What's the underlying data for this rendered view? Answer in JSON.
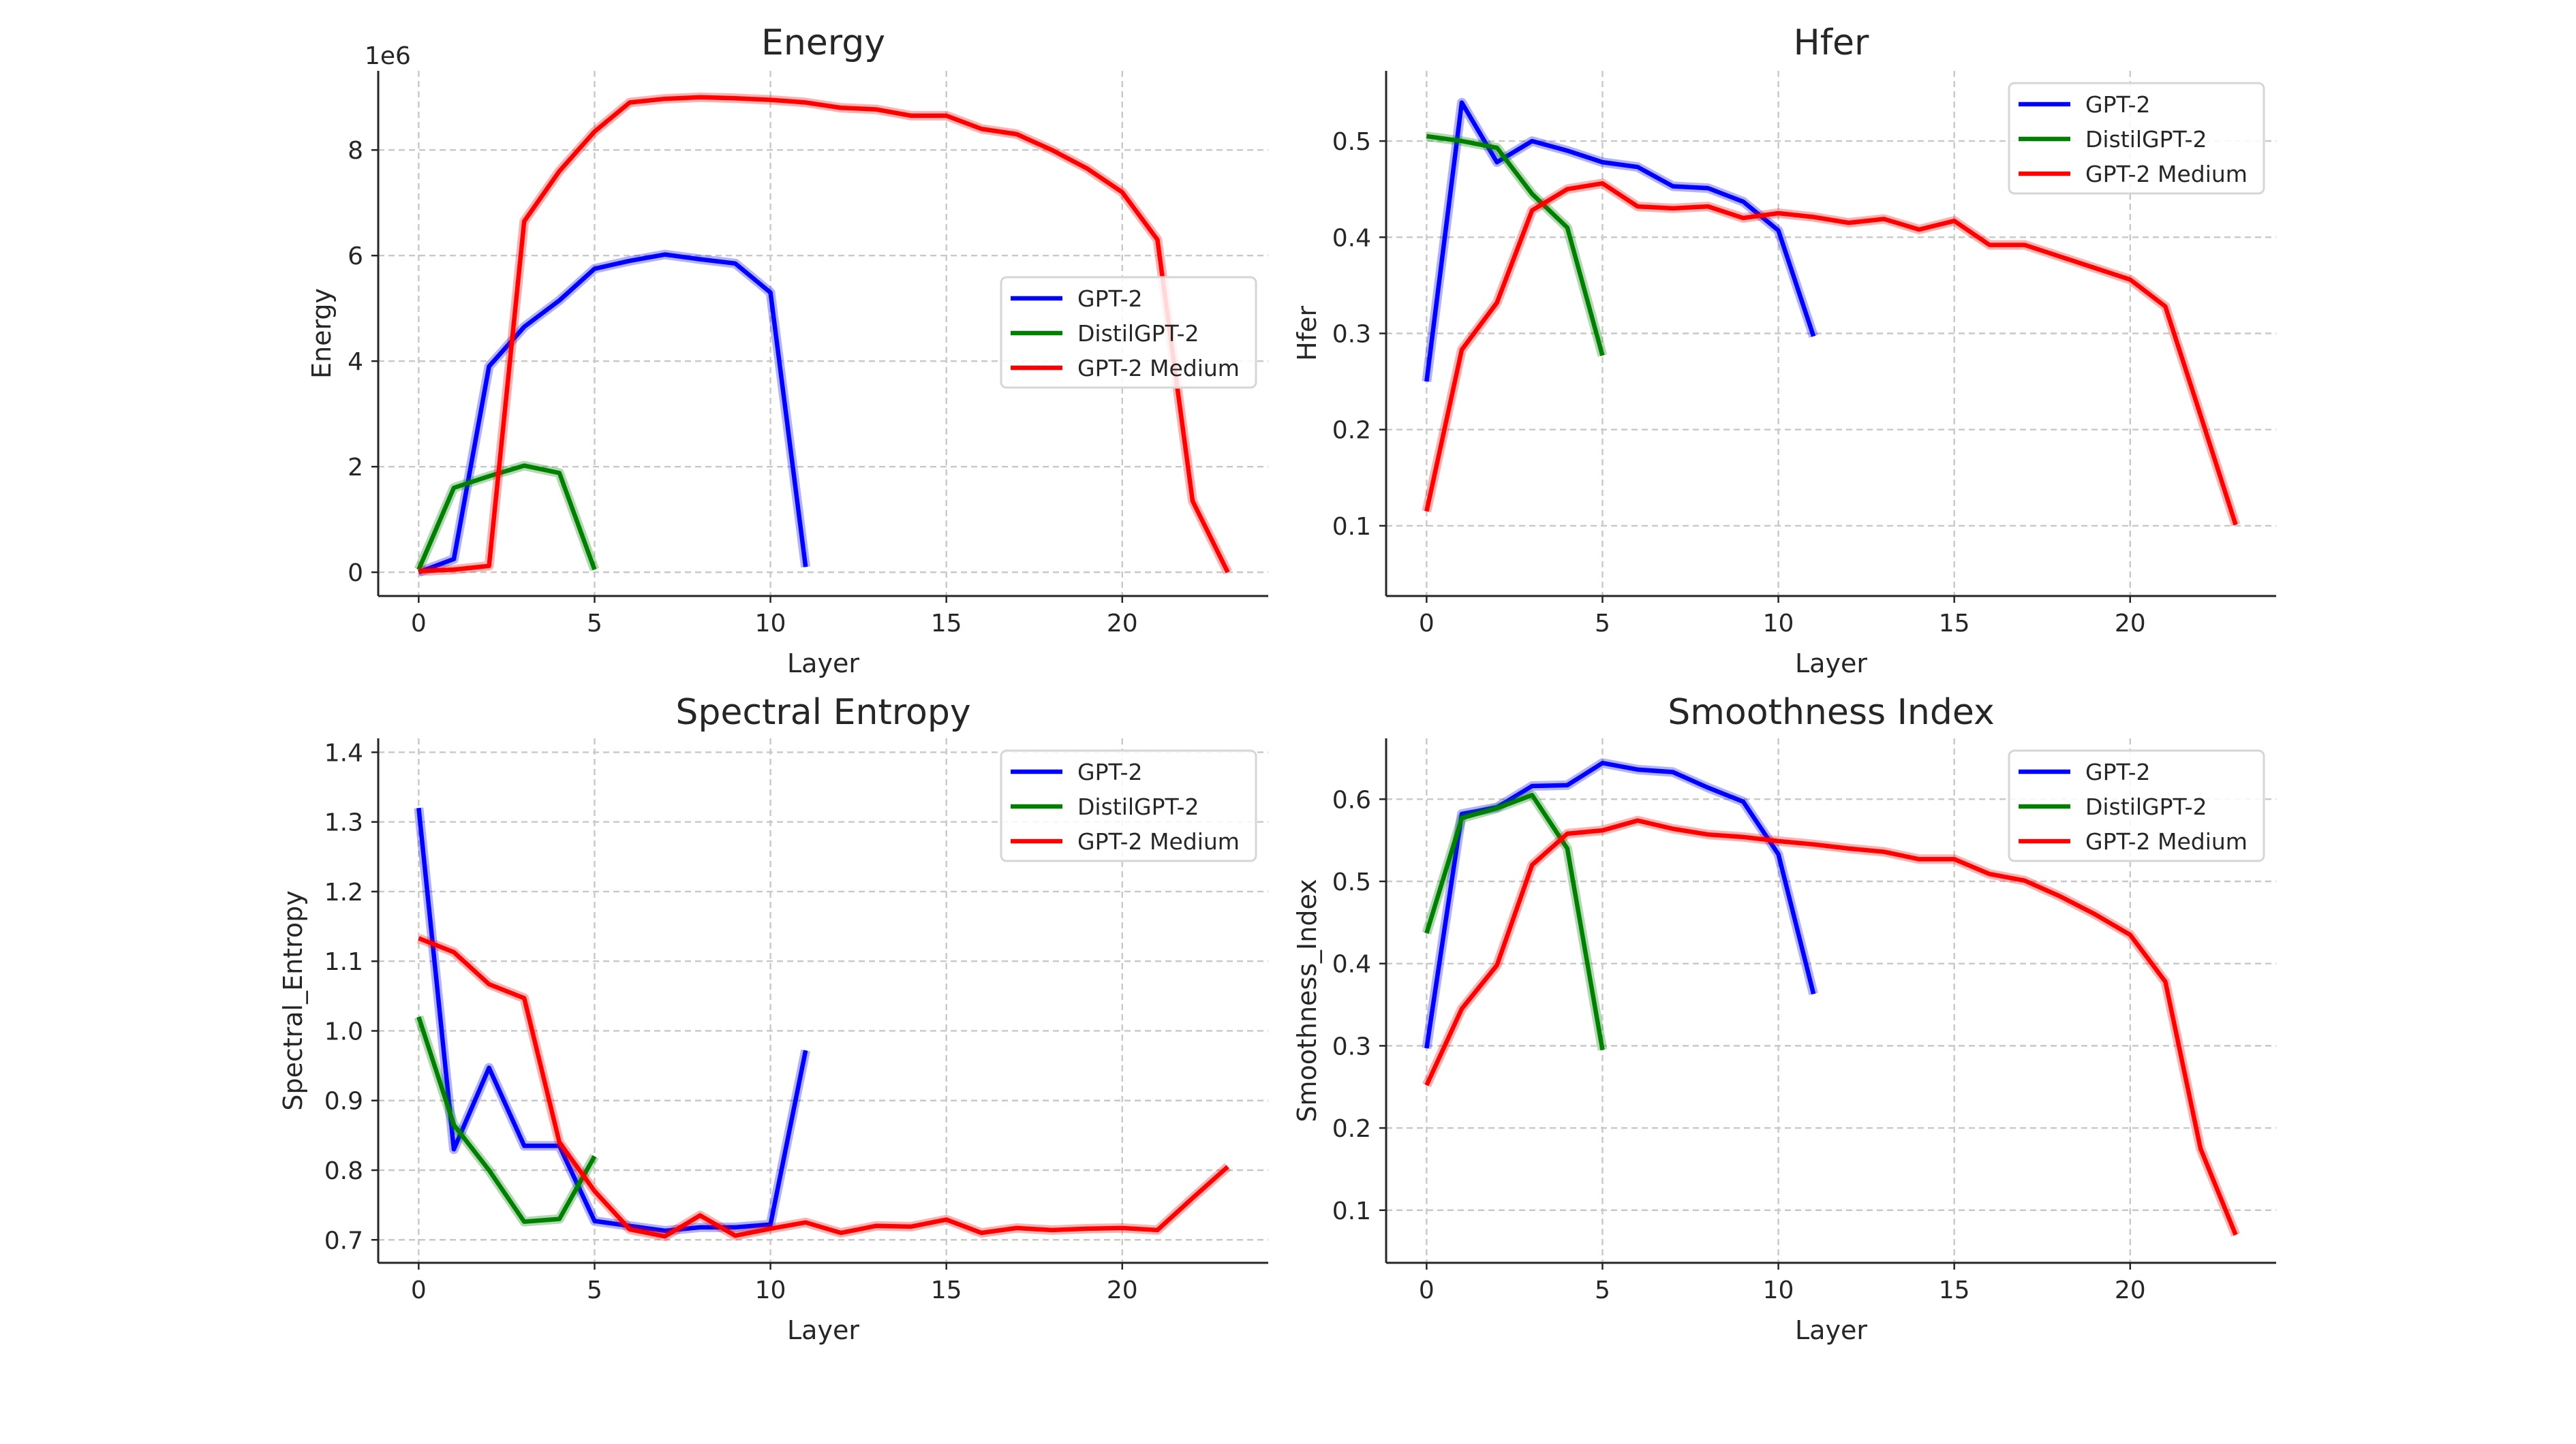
{
  "chart_data": [
    {
      "type": "line",
      "title": "Energy",
      "xlabel": "Layer",
      "ylabel": "Energy",
      "y_offset_label": "1e6",
      "xlim": [
        -1.15,
        24.15
      ],
      "ylim": [
        -0.45,
        9.5
      ],
      "xticks": [
        0,
        5,
        10,
        15,
        20
      ],
      "yticks": [
        0,
        2,
        4,
        6,
        8
      ],
      "ytick_labels": [
        "0",
        "2",
        "4",
        "6",
        "8"
      ],
      "grid": true,
      "legend_position": "center-right",
      "series": [
        {
          "name": "GPT-2",
          "color": "#0000ff",
          "x": [
            0,
            1,
            2,
            3,
            4,
            5,
            6,
            7,
            8,
            9,
            10,
            11
          ],
          "values": [
            0,
            0.25,
            3.9,
            4.65,
            5.15,
            5.75,
            5.9,
            6.02,
            5.93,
            5.85,
            5.3,
            0.1
          ]
        },
        {
          "name": "DistilGPT-2",
          "color": "#008000",
          "x": [
            0,
            1,
            2,
            3,
            4,
            5
          ],
          "values": [
            0.05,
            1.6,
            1.82,
            2.02,
            1.88,
            0.05
          ]
        },
        {
          "name": "GPT-2 Medium",
          "color": "#ff0000",
          "x": [
            0,
            1,
            2,
            3,
            4,
            5,
            6,
            7,
            8,
            9,
            10,
            11,
            12,
            13,
            14,
            15,
            16,
            17,
            18,
            19,
            20,
            21,
            22,
            23
          ],
          "values": [
            0.02,
            0.05,
            0.12,
            6.65,
            7.6,
            8.35,
            8.9,
            8.97,
            9.0,
            8.98,
            8.95,
            8.9,
            8.8,
            8.77,
            8.65,
            8.65,
            8.4,
            8.3,
            8.0,
            7.65,
            7.2,
            6.3,
            1.35,
            0.0
          ]
        }
      ]
    },
    {
      "type": "line",
      "title": "Hfer",
      "xlabel": "Layer",
      "ylabel": "Hfer",
      "xlim": [
        -1.15,
        24.15
      ],
      "ylim": [
        0.027,
        0.573
      ],
      "xticks": [
        0,
        5,
        10,
        15,
        20
      ],
      "yticks": [
        0.1,
        0.2,
        0.3,
        0.4,
        0.5
      ],
      "ytick_labels": [
        "0.1",
        "0.2",
        "0.3",
        "0.4",
        "0.5"
      ],
      "grid": true,
      "legend_position": "top-right",
      "series": [
        {
          "name": "GPT-2",
          "color": "#0000ff",
          "x": [
            0,
            1,
            2,
            3,
            4,
            5,
            6,
            7,
            8,
            9,
            10,
            11
          ],
          "values": [
            0.25,
            0.54,
            0.478,
            0.5,
            0.49,
            0.478,
            0.473,
            0.453,
            0.451,
            0.437,
            0.407,
            0.297
          ]
        },
        {
          "name": "DistilGPT-2",
          "color": "#008000",
          "x": [
            0,
            1,
            2,
            3,
            4,
            5
          ],
          "values": [
            0.505,
            0.5,
            0.493,
            0.445,
            0.41,
            0.277
          ]
        },
        {
          "name": "GPT-2 Medium",
          "color": "#ff0000",
          "x": [
            0,
            1,
            2,
            3,
            4,
            5,
            6,
            7,
            8,
            9,
            10,
            11,
            12,
            13,
            14,
            15,
            16,
            17,
            18,
            19,
            20,
            21,
            22,
            23
          ],
          "values": [
            0.115,
            0.283,
            0.332,
            0.428,
            0.45,
            0.456,
            0.432,
            0.43,
            0.432,
            0.42,
            0.425,
            0.421,
            0.415,
            0.419,
            0.408,
            0.417,
            0.392,
            0.392,
            0.38,
            0.368,
            0.356,
            0.328,
            0.215,
            0.101
          ]
        }
      ]
    },
    {
      "type": "line",
      "title": "Spectral Entropy",
      "xlabel": "Layer",
      "ylabel": "Spectral_Entropy",
      "xlim": [
        -1.15,
        24.15
      ],
      "ylim": [
        0.667,
        1.42
      ],
      "xticks": [
        0,
        5,
        10,
        15,
        20
      ],
      "yticks": [
        0.7,
        0.8,
        0.9,
        1.0,
        1.1,
        1.2,
        1.3,
        1.4
      ],
      "ytick_labels": [
        "0.7",
        "0.8",
        "0.9",
        "1.0",
        "1.1",
        "1.2",
        "1.3",
        "1.4"
      ],
      "grid": true,
      "legend_position": "top-right",
      "series": [
        {
          "name": "GPT-2",
          "color": "#0000ff",
          "x": [
            0,
            1,
            2,
            3,
            4,
            5,
            6,
            7,
            8,
            9,
            10,
            11
          ],
          "values": [
            1.32,
            0.83,
            0.947,
            0.835,
            0.835,
            0.727,
            0.72,
            0.713,
            0.718,
            0.718,
            0.722,
            0.972
          ]
        },
        {
          "name": "DistilGPT-2",
          "color": "#008000",
          "x": [
            0,
            1,
            2,
            3,
            4,
            5
          ],
          "values": [
            1.02,
            0.865,
            0.8,
            0.726,
            0.73,
            0.82
          ]
        },
        {
          "name": "GPT-2 Medium",
          "color": "#ff0000",
          "x": [
            0,
            1,
            2,
            3,
            4,
            5,
            6,
            7,
            8,
            9,
            10,
            11,
            12,
            13,
            14,
            15,
            16,
            17,
            18,
            19,
            20,
            21,
            22,
            23
          ],
          "values": [
            1.133,
            1.113,
            1.067,
            1.047,
            0.84,
            0.77,
            0.715,
            0.705,
            0.735,
            0.706,
            0.716,
            0.725,
            0.71,
            0.72,
            0.719,
            0.729,
            0.71,
            0.717,
            0.714,
            0.716,
            0.717,
            0.714,
            0.76,
            0.805
          ]
        }
      ]
    },
    {
      "type": "line",
      "title": "Smoothness Index",
      "xlabel": "Layer",
      "ylabel": "Smoothness_Index",
      "xlim": [
        -1.15,
        24.15
      ],
      "ylim": [
        0.036,
        0.674
      ],
      "xticks": [
        0,
        5,
        10,
        15,
        20
      ],
      "yticks": [
        0.1,
        0.2,
        0.3,
        0.4,
        0.5,
        0.6
      ],
      "ytick_labels": [
        "0.1",
        "0.2",
        "0.3",
        "0.4",
        "0.5",
        "0.6"
      ],
      "grid": true,
      "legend_position": "top-right",
      "series": [
        {
          "name": "GPT-2",
          "color": "#0000ff",
          "x": [
            0,
            1,
            2,
            3,
            4,
            5,
            6,
            7,
            8,
            9,
            10,
            11
          ],
          "values": [
            0.297,
            0.582,
            0.59,
            0.616,
            0.617,
            0.644,
            0.636,
            0.633,
            0.614,
            0.597,
            0.533,
            0.363
          ]
        },
        {
          "name": "DistilGPT-2",
          "color": "#008000",
          "x": [
            0,
            1,
            2,
            3,
            4,
            5
          ],
          "values": [
            0.437,
            0.577,
            0.589,
            0.605,
            0.54,
            0.295
          ]
        },
        {
          "name": "GPT-2 Medium",
          "color": "#ff0000",
          "x": [
            0,
            1,
            2,
            3,
            4,
            5,
            6,
            7,
            8,
            9,
            10,
            11,
            12,
            13,
            14,
            15,
            16,
            17,
            18,
            19,
            20,
            21,
            22,
            23
          ],
          "values": [
            0.252,
            0.345,
            0.398,
            0.52,
            0.558,
            0.562,
            0.574,
            0.564,
            0.557,
            0.554,
            0.549,
            0.545,
            0.54,
            0.536,
            0.527,
            0.527,
            0.509,
            0.501,
            0.482,
            0.46,
            0.435,
            0.378,
            0.175,
            0.07
          ]
        }
      ]
    }
  ]
}
